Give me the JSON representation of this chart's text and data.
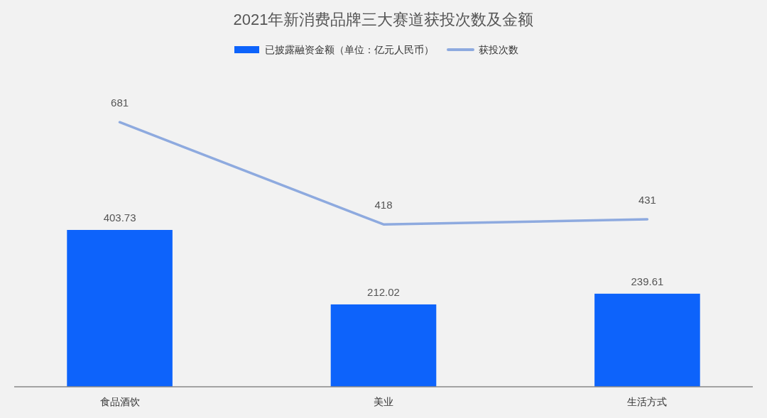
{
  "chart_data": {
    "type": "bar",
    "title": "2021年新消费品牌三大赛道获投次数及金额",
    "categories": [
      "食品酒饮",
      "美业",
      "生活方式"
    ],
    "series": [
      {
        "name": "已披露融资金额（单位：亿元人民币）",
        "color": "#0d63fb",
        "values": [
          403.73,
          212.02,
          239.61
        ]
      },
      {
        "name": "获投次数",
        "type": "line",
        "color": "#8eaadf",
        "values": [
          681,
          418,
          431
        ]
      }
    ],
    "tick_labels": "x",
    "data_labels": true,
    "legend": "top",
    "grid": false,
    "marker": "none"
  }
}
